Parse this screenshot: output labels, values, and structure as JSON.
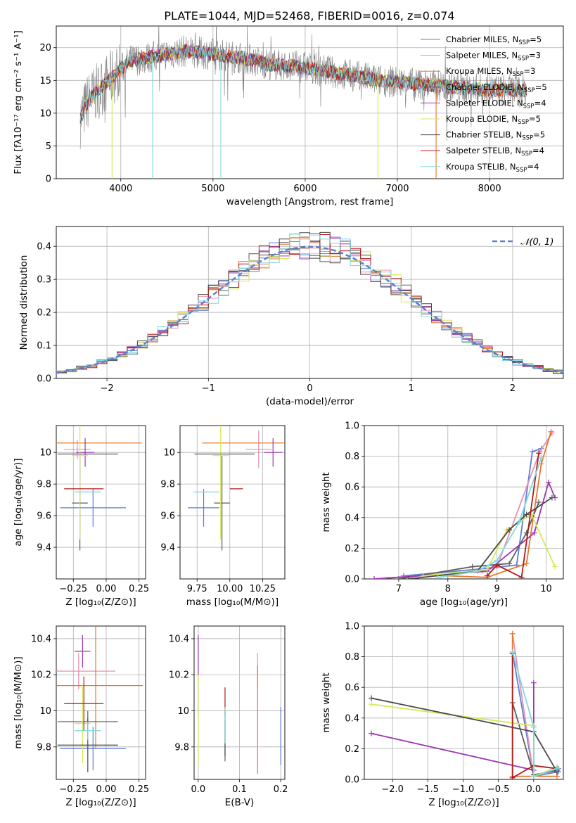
{
  "figure_title": "PLATE=1044, MJD=52468, FIBERID=0016, z=0.074",
  "colors": [
    "#5b7fd6",
    "#e98fb5",
    "#e6782e",
    "#5d5d5d",
    "#9b37b0",
    "#d8e858",
    "#4a4a4a",
    "#b21b1b",
    "#7ed8dd"
  ],
  "chart_data": [
    {
      "id": "spectrum",
      "type": "line",
      "xlabel": "wavelength [Angstrom, rest frame]",
      "ylabel": "Flux [f$_\\lambda$10$^{-17}$ erg cm$^{-2}$ s$^{-1}$ A$^{-1}$]",
      "ylabel_text": "Flux [fλ10⁻¹⁷ erg cm⁻² s⁻¹ A⁻¹]",
      "xlim": [
        3300,
        8800
      ],
      "ylim": [
        0,
        23.3
      ],
      "xticks": [
        4000,
        5000,
        6000,
        7000,
        8000
      ],
      "yticks": [
        0,
        5,
        10,
        15,
        20
      ],
      "legend": [
        {
          "name": "Chabrier MILES, N",
          "sub": "SSP",
          "tail": "=5"
        },
        {
          "name": "Salpeter MILES, N",
          "sub": "SSP",
          "tail": "=3"
        },
        {
          "name": "Kroupa MILES, N",
          "sub": "SSP",
          "tail": "=3"
        },
        {
          "name": "Chabrier ELODIE, N",
          "sub": "SSP",
          "tail": "=5"
        },
        {
          "name": "Salpeter ELODIE, N",
          "sub": "SSP",
          "tail": "=4"
        },
        {
          "name": "Kroupa ELODIE, N",
          "sub": "SSP",
          "tail": "=5"
        },
        {
          "name": "Chabrier STELIB, N",
          "sub": "SSP",
          "tail": "=5"
        },
        {
          "name": "Salpeter STELIB, N",
          "sub": "SSP",
          "tail": "=4"
        },
        {
          "name": "Kroupa STELIB, N",
          "sub": "SSP",
          "tail": "=4"
        }
      ],
      "continuum": {
        "x": [
          3560,
          3650,
          3800,
          3950,
          4100,
          4300,
          4500,
          4700,
          5000,
          5300,
          5600,
          6000,
          6400,
          6800,
          7200,
          7600,
          8000,
          8400
        ],
        "y": [
          9,
          12,
          14,
          16,
          18,
          18.5,
          19,
          19.5,
          19,
          18.5,
          17.5,
          17,
          16,
          15,
          14.5,
          14,
          13.5,
          13.5
        ]
      },
      "grid": true
    },
    {
      "id": "residual_hist",
      "type": "line",
      "xlabel": "(data-model)/error",
      "ylabel": "Normed distribution",
      "xlim": [
        -2.5,
        2.5
      ],
      "ylim": [
        0,
        0.46
      ],
      "xticks": [
        -2,
        -1,
        0,
        1,
        2
      ],
      "yticks": [
        0.0,
        0.1,
        0.2,
        0.3,
        0.4
      ],
      "legend": [
        {
          "name": "𝒩(0, 1)"
        }
      ],
      "grid": true
    },
    {
      "id": "age_vs_Z",
      "type": "scatter",
      "xlabel": "Z [log₁₀(Z/Z⊙)]",
      "ylabel": "age  [log₁₀(age/yr)]",
      "xlim": [
        -0.38,
        0.3
      ],
      "ylim": [
        9.2,
        10.17
      ],
      "xticks": [
        -0.25,
        0.0,
        0.25
      ],
      "xticklabels": [
        "−0.25",
        "0.00",
        "0.25"
      ],
      "yticks": [
        9.4,
        9.6,
        9.8,
        10.0
      ],
      "points": [
        {
          "x": -0.1,
          "y": 9.65,
          "xerr": 0.25,
          "yerr": 0.12
        },
        {
          "x": -0.22,
          "y": 10.02,
          "xerr": 0.1,
          "yerr": 0.06
        },
        {
          "x": -0.08,
          "y": 10.06,
          "xerr": 0.35,
          "yerr": 0.0
        },
        {
          "x": -0.2,
          "y": 9.68,
          "xerr": 0.06,
          "yerr": 0.3
        },
        {
          "x": -0.16,
          "y": 10.0,
          "xerr": 0.07,
          "yerr": 0.09
        },
        {
          "x": -0.2,
          "y": 9.98,
          "xerr": 0.06,
          "yerr": 0.53
        },
        {
          "x": -0.14,
          "y": 9.99,
          "xerr": 0.23,
          "yerr": 0.0
        },
        {
          "x": -0.17,
          "y": 9.77,
          "xerr": 0.15,
          "yerr": 0.0
        },
        {
          "x": -0.14,
          "y": 9.75,
          "xerr": 0.1,
          "yerr": 0.0
        }
      ],
      "grid": true
    },
    {
      "id": "age_vs_mass",
      "type": "scatter",
      "xlabel": "mass [log₁₀(M/M⊙)]",
      "ylabel": "",
      "xlim": [
        9.62,
        10.42
      ],
      "ylim": [
        9.2,
        10.17
      ],
      "xticks": [
        9.75,
        10.0,
        10.25
      ],
      "xticklabels": [
        "9.75",
        "10.00",
        "10.25"
      ],
      "yticks": [
        9.4,
        9.6,
        9.8,
        10.0
      ],
      "points": [
        {
          "x": 9.8,
          "y": 9.65,
          "xerr": 0.12,
          "yerr": 0.12
        },
        {
          "x": 10.22,
          "y": 10.02,
          "xerr": 0.1,
          "yerr": 0.12
        },
        {
          "x": 10.14,
          "y": 10.06,
          "xerr": 0.35,
          "yerr": 0.0
        },
        {
          "x": 9.94,
          "y": 9.68,
          "xerr": 0.06,
          "yerr": 0.3
        },
        {
          "x": 10.33,
          "y": 10.0,
          "xerr": 0.07,
          "yerr": 0.09
        },
        {
          "x": 9.93,
          "y": 9.98,
          "xerr": 0.06,
          "yerr": 0.53
        },
        {
          "x": 9.96,
          "y": 9.99,
          "xerr": 0.23,
          "yerr": 0.0
        },
        {
          "x": 10.05,
          "y": 9.77,
          "xerr": 0.05,
          "yerr": 0.0
        },
        {
          "x": 9.82,
          "y": 9.75,
          "xerr": 0.1,
          "yerr": 0.0
        }
      ],
      "grid": true
    },
    {
      "id": "massweight_vs_age",
      "type": "line",
      "xlabel": "age  [log₁₀(age/yr)]",
      "ylabel": "mass weight",
      "xlim": [
        6.3,
        10.35
      ],
      "ylim": [
        0,
        1.0
      ],
      "xticks": [
        7,
        8,
        9,
        10
      ],
      "yticks": [
        0.0,
        0.2,
        0.4,
        0.6,
        0.8,
        1.0
      ],
      "series": [
        {
          "x": [
            7.1,
            8.5,
            9.4,
            9.72,
            9.9
          ],
          "y": [
            0.02,
            0.06,
            0.09,
            0.83,
            0.85
          ]
        },
        {
          "x": [
            6.5,
            8.7,
            9.0,
            9.87,
            10.12
          ],
          "y": [
            0.0,
            0.05,
            0.08,
            0.83,
            0.95
          ]
        },
        {
          "x": [
            8.0,
            8.8,
            9.6,
            9.9,
            10.1
          ],
          "y": [
            0.02,
            0.01,
            0.1,
            0.75,
            0.96
          ]
        },
        {
          "x": [
            7.0,
            8.5,
            9.25,
            9.6,
            9.85
          ],
          "y": [
            0.0,
            0.08,
            0.1,
            0.3,
            0.5
          ]
        },
        {
          "x": [
            6.5,
            8.8,
            9.76,
            10.05,
            10.18
          ],
          "y": [
            0.0,
            0.05,
            0.3,
            0.63,
            0.53
          ]
        },
        {
          "x": [
            7.5,
            8.8,
            9.2,
            9.7,
            10.18
          ],
          "y": [
            0.02,
            0.06,
            0.32,
            0.42,
            0.08
          ]
        },
        {
          "x": [
            7.2,
            8.6,
            9.25,
            9.6,
            10.12
          ],
          "y": [
            0.0,
            0.05,
            0.32,
            0.42,
            0.53
          ]
        },
        {
          "x": [
            8.8,
            9.0,
            9.5,
            9.85
          ],
          "y": [
            0.02,
            0.09,
            0.01,
            0.82
          ]
        },
        {
          "x": [
            7.8,
            8.6,
            9.0,
            9.45,
            9.9
          ],
          "y": [
            0.01,
            0.05,
            0.12,
            0.37,
            0.79
          ]
        }
      ],
      "grid": true
    },
    {
      "id": "mass_vs_Z",
      "type": "scatter",
      "xlabel": "Z [log₁₀(Z/Z⊙)]",
      "ylabel": "mass [log₁₀(M/M⊙)]",
      "xlim": [
        -0.38,
        0.3
      ],
      "ylim": [
        9.62,
        10.47
      ],
      "xticks": [
        -0.25,
        0.0,
        0.25
      ],
      "xticklabels": [
        "−0.25",
        "0.00",
        "0.25"
      ],
      "yticks": [
        9.8,
        10.0,
        10.2,
        10.4
      ],
      "points": [
        {
          "x": -0.1,
          "y": 9.79,
          "xerr": 0.25,
          "yerr": 0.12
        },
        {
          "x": -0.21,
          "y": 10.22,
          "xerr": 0.28,
          "yerr": 0.1
        },
        {
          "x": -0.08,
          "y": 10.14,
          "xerr": 0.36,
          "yerr": 0.35
        },
        {
          "x": -0.14,
          "y": 9.94,
          "xerr": 0.23,
          "yerr": 0.06
        },
        {
          "x": -0.18,
          "y": 10.33,
          "xerr": 0.06,
          "yerr": 0.09
        },
        {
          "x": -0.18,
          "y": 9.93,
          "xerr": 0.06,
          "yerr": 0.22
        },
        {
          "x": -0.14,
          "y": 9.81,
          "xerr": 0.23,
          "yerr": 0.15
        },
        {
          "x": -0.17,
          "y": 10.04,
          "xerr": 0.15,
          "yerr": 0.15
        },
        {
          "x": -0.14,
          "y": 9.89,
          "xerr": 0.1,
          "yerr": 0.05
        }
      ],
      "grid": true
    },
    {
      "id": "mass_vs_ebv",
      "type": "scatter",
      "xlabel": "E(B-V)",
      "ylabel": "",
      "xlim": [
        -0.01,
        0.21
      ],
      "ylim": [
        9.62,
        10.47
      ],
      "xticks": [
        0.0,
        0.1,
        0.2
      ],
      "xticklabels": [
        "0.0",
        "0.1",
        "0.2"
      ],
      "yticks": [
        9.8,
        10.0,
        10.2,
        10.4
      ],
      "points": [
        {
          "x": 0.2,
          "y": 9.86,
          "xerr": 0.0,
          "yerr": 0.16
        },
        {
          "x": 0.144,
          "y": 10.22,
          "xerr": 0.0,
          "yerr": 0.1
        },
        {
          "x": 0.144,
          "y": 9.95,
          "xerr": 0.0,
          "yerr": 0.3
        },
        {
          "x": 0.065,
          "y": 9.86,
          "xerr": 0.0,
          "yerr": 0.14
        },
        {
          "x": 0.0,
          "y": 10.2,
          "xerr": 0.0,
          "yerr": 0.22
        },
        {
          "x": 0.0,
          "y": 9.95,
          "xerr": 0.0,
          "yerr": 0.25
        },
        {
          "x": 0.065,
          "y": 9.85,
          "xerr": 0.0,
          "yerr": 0.1
        },
        {
          "x": 0.065,
          "y": 10.05,
          "xerr": 0.0,
          "yerr": 0.08
        },
        {
          "x": 0.065,
          "y": 9.92,
          "xerr": 0.0,
          "yerr": 0.1
        }
      ],
      "grid": true
    },
    {
      "id": "massweight_vs_Z",
      "type": "line",
      "xlabel": "Z [log₁₀(Z/Z⊙)]",
      "ylabel": "mass weight",
      "xlim": [
        -2.4,
        0.42
      ],
      "ylim": [
        0,
        1.0
      ],
      "xticks": [
        -2.0,
        -1.5,
        -1.0,
        -0.5,
        0.0
      ],
      "xticklabels": [
        "−2.0",
        "−1.5",
        "−1.0",
        "−0.5",
        "0.0"
      ],
      "yticks": [
        0.0,
        0.2,
        0.4,
        0.6,
        0.8,
        1.0
      ],
      "series": [
        {
          "x": [
            -0.3,
            0.0,
            0.35,
            0.35
          ],
          "y": [
            0.83,
            0.02,
            0.05,
            0.07
          ]
        },
        {
          "x": [
            -0.3,
            0.0,
            0.33
          ],
          "y": [
            0.95,
            0.02,
            0.06
          ]
        },
        {
          "x": [
            -0.3,
            -0.3,
            0.33,
            0.33
          ],
          "y": [
            0.95,
            0.02,
            0.02,
            0.08
          ]
        },
        {
          "x": [
            -0.3,
            0.0,
            0.33
          ],
          "y": [
            0.5,
            0.03,
            0.06
          ]
        },
        {
          "x": [
            -2.3,
            0.0,
            0.0
          ],
          "y": [
            0.3,
            0.06,
            0.63
          ]
        },
        {
          "x": [
            -2.3,
            0.0,
            0.0,
            0.33
          ],
          "y": [
            0.49,
            0.35,
            0.02,
            0.08
          ]
        },
        {
          "x": [
            -2.3,
            0.0,
            0.33
          ],
          "y": [
            0.53,
            0.31,
            0.05
          ]
        },
        {
          "x": [
            -0.3,
            -0.3,
            0.0,
            0.33
          ],
          "y": [
            0.82,
            0.01,
            0.09,
            0.07
          ]
        },
        {
          "x": [
            -0.3,
            0.0,
            0.0,
            0.33
          ],
          "y": [
            0.83,
            0.34,
            0.02,
            0.07
          ]
        }
      ],
      "grid": true
    }
  ]
}
